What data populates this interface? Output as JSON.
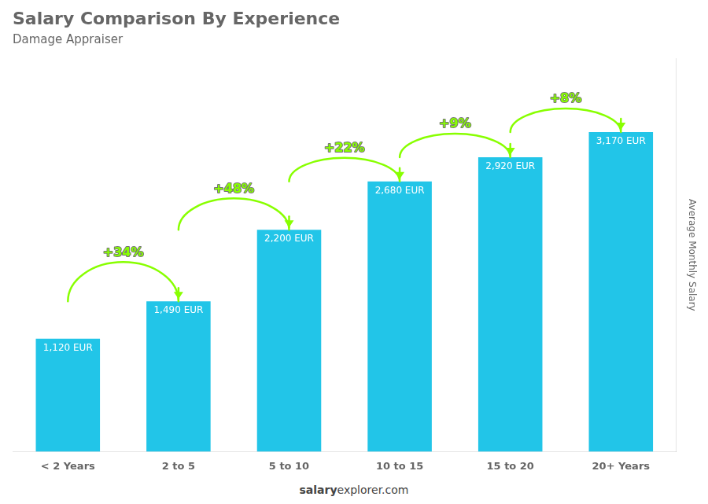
{
  "chart_data": {
    "type": "bar",
    "title": "Salary Comparison By Experience",
    "subtitle": "Damage Appraiser",
    "categories": [
      "< 2 Years",
      "2 to 5",
      "5 to 10",
      "10 to 15",
      "15 to 20",
      "20+ Years"
    ],
    "values": [
      1120,
      1490,
      2200,
      2680,
      2920,
      3170
    ],
    "value_labels": [
      "1,120 EUR",
      "1,490 EUR",
      "2,200 EUR",
      "2,680 EUR",
      "2,920 EUR",
      "3,170 EUR"
    ],
    "data_labels": true,
    "color": "#22c5e8",
    "ylabel": "Average Monthly Salary",
    "ylim": [
      0,
      3900
    ],
    "tick_labels": "x",
    "grid": false,
    "annotations": [
      {
        "text": "+34%",
        "color": "#88ff00"
      },
      {
        "text": "+48%",
        "color": "#88ff00"
      },
      {
        "text": "+22%",
        "color": "#88ff00"
      },
      {
        "text": "+9%",
        "color": "#88ff00"
      },
      {
        "text": "+8%",
        "color": "#88ff00"
      }
    ],
    "footer": [
      "salary",
      "explorer.com"
    ]
  }
}
